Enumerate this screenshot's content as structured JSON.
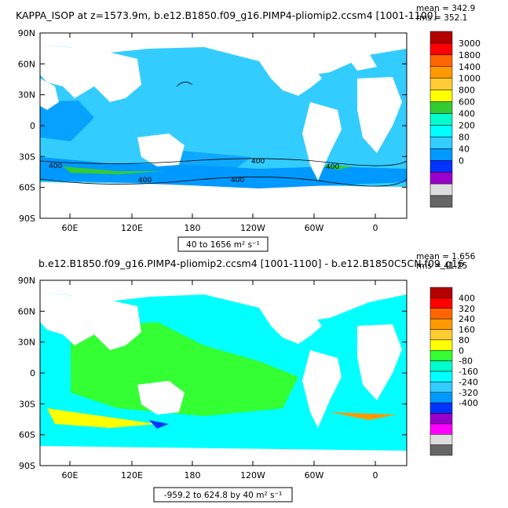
{
  "chart_data": [
    {
      "type": "heatmap",
      "title": "KAPPA_ISOP at z=1573.9m, b.e12.B1850.f09_g16.PIMP4-pliomip2.ccsm4 [1001-1100]",
      "stats": {
        "mean": "mean = 342.9",
        "rms": "rms = 352.1"
      },
      "x_ticks": [
        "60E",
        "120E",
        "180",
        "120W",
        "60W",
        "0"
      ],
      "y_ticks": [
        "90N",
        "60N",
        "30N",
        "0",
        "30S",
        "60S",
        "90S"
      ],
      "colorbar_levels": [
        "3000",
        "1800",
        "1400",
        "1000",
        "800",
        "600",
        "400",
        "200",
        "80",
        "40",
        "0"
      ],
      "colorbar_colors": [
        "#b30000",
        "#ff0000",
        "#ff6600",
        "#ff9900",
        "#ffcc33",
        "#ffff00",
        "#33cc33",
        "#00ffcc",
        "#00ffff",
        "#33ccff",
        "#0099ff",
        "#0033ff",
        "#9900cc",
        "#dddddd",
        "#666666"
      ],
      "contour_labels": [
        "400",
        "400",
        "400",
        "400",
        "400"
      ],
      "range_label": "40 to 1656 m² s⁻¹"
    },
    {
      "type": "heatmap",
      "title": "b.e12.B1850.f09_g16.PIMP4-pliomip2.ccsm4 [1001-1100] - b.e12.B1850C5CN.f09_g16",
      "stats": {
        "mean": "mean = 1.656",
        "rms": "rms = 41.25"
      },
      "x_ticks": [
        "60E",
        "120E",
        "180",
        "120W",
        "60W",
        "0"
      ],
      "y_ticks": [
        "90N",
        "60N",
        "30N",
        "0",
        "30S",
        "60S",
        "90S"
      ],
      "colorbar_levels": [
        "400",
        "320",
        "240",
        "160",
        "80",
        "0",
        "-80",
        "-160",
        "-240",
        "-320",
        "-400"
      ],
      "colorbar_colors": [
        "#b30000",
        "#ff0000",
        "#ff6600",
        "#ff9900",
        "#ffcc33",
        "#ffff00",
        "#33ff33",
        "#00ffcc",
        "#00ffff",
        "#33ccff",
        "#0099ff",
        "#0033ff",
        "#9900cc",
        "#ff00ff",
        "#dddddd",
        "#666666"
      ],
      "range_label": "-959.2 to 624.8 by 40 m² s⁻¹"
    }
  ]
}
